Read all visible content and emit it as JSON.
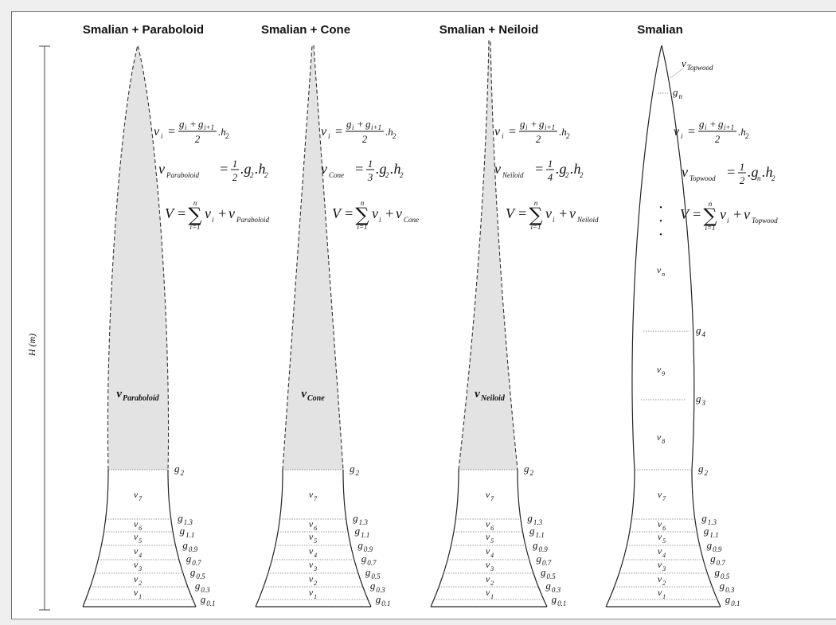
{
  "axis": {
    "label": "H (m)"
  },
  "titles": [
    "Smalian + Paraboloid",
    "Smalian + Cone",
    "Smalian + Neiloid",
    "Smalian"
  ],
  "section_v": [
    {
      "b": "v",
      "s": "7"
    },
    {
      "b": "v",
      "s": "6"
    },
    {
      "b": "v",
      "s": "5"
    },
    {
      "b": "v",
      "s": "4"
    },
    {
      "b": "v",
      "s": "3"
    },
    {
      "b": "v",
      "s": "2"
    },
    {
      "b": "v",
      "s": "1"
    }
  ],
  "section_g": [
    {
      "b": "g",
      "s": "2"
    },
    {
      "b": "g",
      "s": "1.3"
    },
    {
      "b": "g",
      "s": "1.1"
    },
    {
      "b": "g",
      "s": "0.9"
    },
    {
      "b": "g",
      "s": "0.7"
    },
    {
      "b": "g",
      "s": "0.5"
    },
    {
      "b": "g",
      "s": "0.3"
    },
    {
      "b": "g",
      "s": "0.1"
    }
  ],
  "formula_common": {
    "vi_lhs_b": "v",
    "vi_lhs_s": "i",
    "eq": "=",
    "gi_b": "g",
    "gi_s": "i",
    "plus": "+",
    "gi1_b": "g",
    "gi1_s": "i+1",
    "two": "2",
    "h2_b": ".h",
    "h2_s": "2",
    "V": "V",
    "sum": "∑",
    "sum_top": "n",
    "sum_bot": "i=1",
    "sum_v_b": "v",
    "sum_v_s": "i",
    "one": "1",
    "g2_b": ".g",
    "g2_s": "2",
    "gn_b": ".g",
    "gn_s": "n"
  },
  "top_formulas": [
    {
      "name": "Paraboloid",
      "denom": "2"
    },
    {
      "name": "Cone",
      "denom": "3"
    },
    {
      "name": "Neiloid",
      "denom": "4"
    },
    {
      "name": "Topwood",
      "denom": "2"
    }
  ],
  "top_labels": [
    {
      "b": "v",
      "s": "Paraboloid"
    },
    {
      "b": "v",
      "s": "Cone"
    },
    {
      "b": "v",
      "s": "Neiloid"
    }
  ],
  "smalian_extra": {
    "v_topwood": {
      "b": "v",
      "s": "Topwood"
    },
    "g_n": {
      "b": "g",
      "s": "n"
    },
    "v_n": {
      "b": "v",
      "s": "n"
    },
    "g_4": {
      "b": "g",
      "s": "4"
    },
    "v_9": {
      "b": "v",
      "s": "9"
    },
    "g_3": {
      "b": "g",
      "s": "3"
    },
    "v_8": {
      "b": "v",
      "s": "8"
    },
    "dots": "•"
  },
  "colors": {
    "fill_top": "#e3e3e3",
    "line": "#222222",
    "dash": "#333333"
  }
}
